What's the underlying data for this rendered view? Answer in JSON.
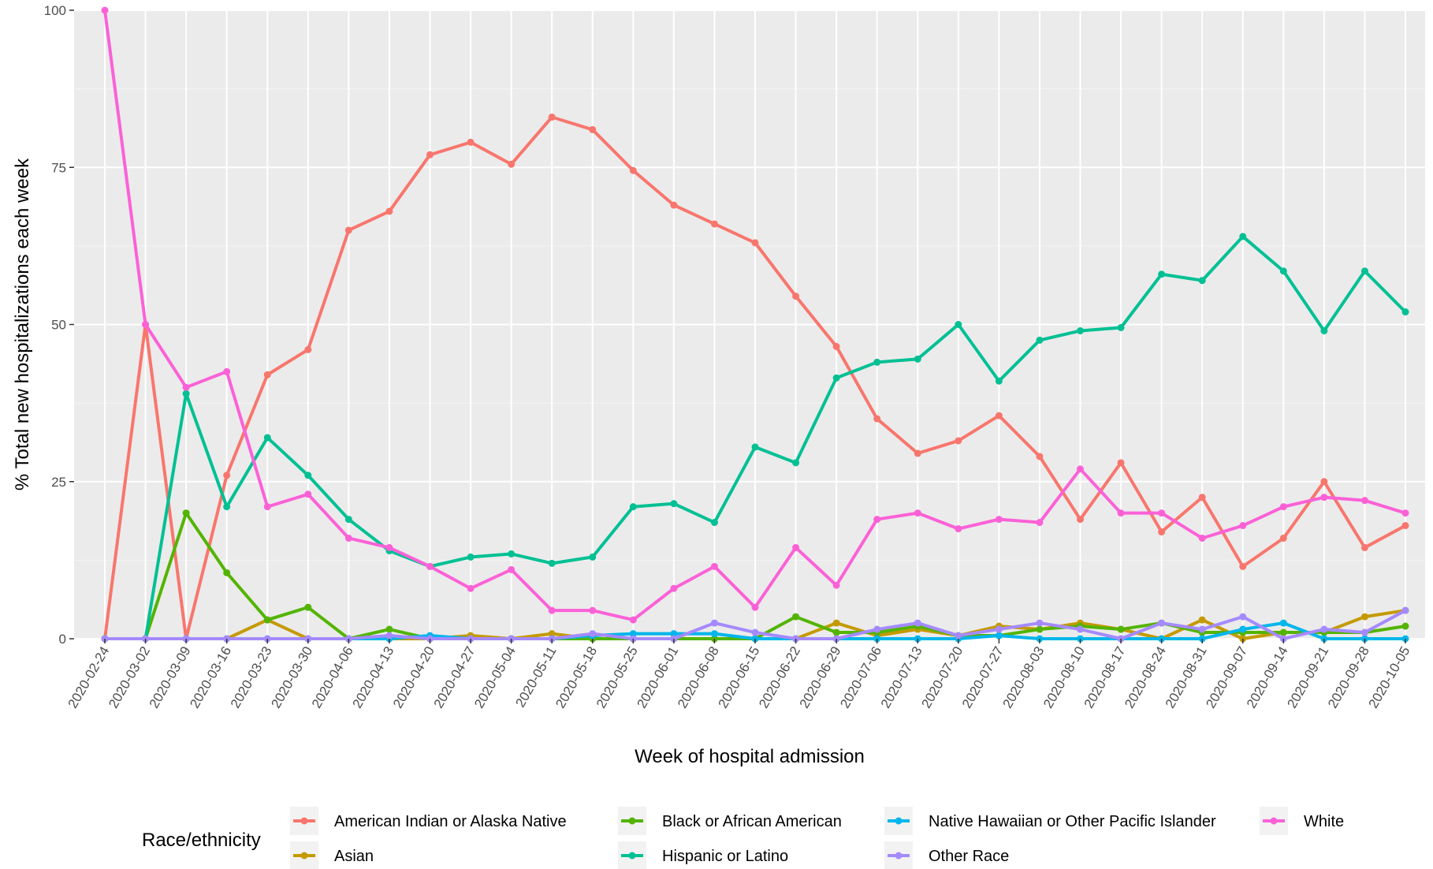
{
  "chart_data": {
    "type": "line",
    "title": "",
    "xlabel": "Week of hospital admission",
    "ylabel": "% Total new hospitalizations each week",
    "ylim": [
      0,
      100
    ],
    "yticks": [
      0,
      25,
      50,
      75,
      100
    ],
    "grid": true,
    "background": "#ebebeb",
    "legend_title": "Race/ethnicity",
    "legend_position": "bottom",
    "x": [
      "2020-02-24",
      "2020-03-02",
      "2020-03-09",
      "2020-03-16",
      "2020-03-23",
      "2020-03-30",
      "2020-04-06",
      "2020-04-13",
      "2020-04-20",
      "2020-04-27",
      "2020-05-04",
      "2020-05-11",
      "2020-05-18",
      "2020-05-25",
      "2020-06-01",
      "2020-06-08",
      "2020-06-15",
      "2020-06-22",
      "2020-06-29",
      "2020-07-06",
      "2020-07-13",
      "2020-07-20",
      "2020-07-27",
      "2020-08-03",
      "2020-08-10",
      "2020-08-17",
      "2020-08-24",
      "2020-08-31",
      "2020-09-07",
      "2020-09-14",
      "2020-09-21",
      "2020-09-28",
      "2020-10-05"
    ],
    "series": [
      {
        "name": "American Indian or Alaska Native",
        "color": "#F8766D",
        "values": [
          0,
          50,
          0,
          26,
          42,
          46,
          65,
          68,
          77,
          79,
          75.5,
          83,
          81,
          74.5,
          69,
          66,
          63,
          54.5,
          46.5,
          35,
          29.5,
          31.5,
          35.5,
          29,
          19,
          28,
          17,
          22.5,
          11.5,
          16,
          25,
          14.5,
          18
        ]
      },
      {
        "name": "Asian",
        "color": "#C49A00",
        "values": [
          0,
          0,
          0,
          0,
          3,
          0,
          0,
          0,
          0,
          0.5,
          0,
          0.8,
          0,
          0,
          0,
          0,
          0,
          0,
          2.5,
          0.5,
          1.5,
          0.5,
          2,
          1.5,
          2.5,
          1.5,
          0,
          3,
          0,
          1,
          1,
          3.5,
          4.5
        ]
      },
      {
        "name": "Black or African American",
        "color": "#53B400",
        "values": [
          0,
          0,
          20,
          10.5,
          3,
          5,
          0,
          1.5,
          0,
          0,
          0,
          0,
          0,
          0,
          0,
          0,
          0,
          3.5,
          1,
          1,
          2,
          0.5,
          0.5,
          1.5,
          2,
          1.5,
          2.5,
          1,
          1,
          1,
          1,
          1,
          2
        ]
      },
      {
        "name": "Hispanic or Latino",
        "color": "#00C094",
        "values": [
          0,
          0,
          39,
          21,
          32,
          26,
          19,
          14,
          11.5,
          13,
          13.5,
          12,
          13,
          21,
          21.5,
          18.5,
          30.5,
          28,
          41.5,
          44,
          44.5,
          50,
          41,
          47.5,
          49,
          49.5,
          58,
          57,
          64,
          58.5,
          49,
          58.5,
          52
        ]
      },
      {
        "name": "Native Hawaiian or Other Pacific Islander",
        "color": "#00B6EB",
        "values": [
          0,
          0,
          0,
          0,
          0,
          0,
          0,
          0,
          0.5,
          0,
          0,
          0,
          0.5,
          0.8,
          0.8,
          0.8,
          0,
          0,
          0,
          0,
          0,
          0,
          0.5,
          0,
          0,
          0,
          0,
          0,
          1.5,
          2.5,
          0,
          0,
          0
        ]
      },
      {
        "name": "Other Race",
        "color": "#A58AFF",
        "values": [
          0,
          0,
          0,
          0,
          0,
          0,
          0,
          0.5,
          0,
          0,
          0,
          0,
          0.8,
          0,
          0,
          2.5,
          1,
          0,
          0,
          1.5,
          2.5,
          0.5,
          1.5,
          2.5,
          1.5,
          0,
          2.5,
          1.5,
          3.5,
          0,
          1.5,
          1,
          4.5
        ]
      },
      {
        "name": "White",
        "color": "#FB61D7",
        "values": [
          100,
          50,
          40,
          42.5,
          21,
          23,
          16,
          14.5,
          11.5,
          8,
          11,
          4.5,
          4.5,
          3,
          8,
          11.5,
          5,
          14.5,
          8.5,
          19,
          20,
          17.5,
          19,
          18.5,
          27,
          20,
          20,
          16,
          18,
          21,
          22.5,
          22,
          20
        ]
      }
    ]
  }
}
